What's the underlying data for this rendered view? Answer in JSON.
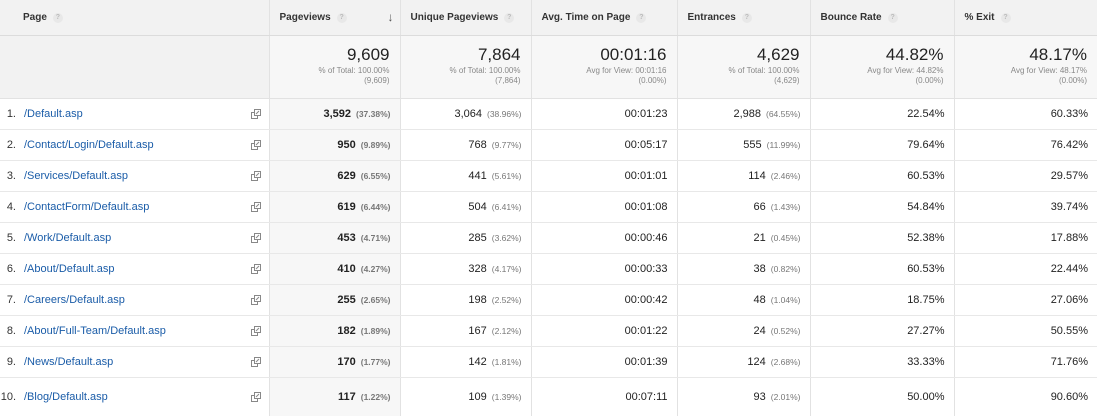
{
  "columns": [
    {
      "label": "Page"
    },
    {
      "label": "Pageviews"
    },
    {
      "label": "Unique Pageviews"
    },
    {
      "label": "Avg. Time on Page"
    },
    {
      "label": "Entrances"
    },
    {
      "label": "Bounce Rate"
    },
    {
      "label": "% Exit"
    }
  ],
  "totals": [
    {
      "value": "9,609",
      "line1": "% of Total: 100.00%",
      "line2": "(9,609)"
    },
    {
      "value": "7,864",
      "line1": "% of Total: 100.00%",
      "line2": "(7,864)"
    },
    {
      "value": "00:01:16",
      "line1": "Avg for View: 00:01:16",
      "line2": "(0.00%)"
    },
    {
      "value": "4,629",
      "line1": "% of Total: 100.00%",
      "line2": "(4,629)"
    },
    {
      "value": "44.82%",
      "line1": "Avg for View: 44.82%",
      "line2": "(0.00%)"
    },
    {
      "value": "48.17%",
      "line1": "Avg for View: 48.17%",
      "line2": "(0.00%)"
    }
  ],
  "rows": [
    {
      "rank": "1.",
      "page": "/Default.asp",
      "pageviews": "3,592",
      "pageviews_pct": "(37.38%)",
      "unique": "3,064",
      "unique_pct": "(38.96%)",
      "avg_time": "00:01:23",
      "entrances": "2,988",
      "entrances_pct": "(64.55%)",
      "bounce": "22.54%",
      "exit": "60.33%"
    },
    {
      "rank": "2.",
      "page": "/Contact/Login/Default.asp",
      "pageviews": "950",
      "pageviews_pct": "(9.89%)",
      "unique": "768",
      "unique_pct": "(9.77%)",
      "avg_time": "00:05:17",
      "entrances": "555",
      "entrances_pct": "(11.99%)",
      "bounce": "79.64%",
      "exit": "76.42%"
    },
    {
      "rank": "3.",
      "page": "/Services/Default.asp",
      "pageviews": "629",
      "pageviews_pct": "(6.55%)",
      "unique": "441",
      "unique_pct": "(5.61%)",
      "avg_time": "00:01:01",
      "entrances": "114",
      "entrances_pct": "(2.46%)",
      "bounce": "60.53%",
      "exit": "29.57%"
    },
    {
      "rank": "4.",
      "page": "/ContactForm/Default.asp",
      "pageviews": "619",
      "pageviews_pct": "(6.44%)",
      "unique": "504",
      "unique_pct": "(6.41%)",
      "avg_time": "00:01:08",
      "entrances": "66",
      "entrances_pct": "(1.43%)",
      "bounce": "54.84%",
      "exit": "39.74%"
    },
    {
      "rank": "5.",
      "page": "/Work/Default.asp",
      "pageviews": "453",
      "pageviews_pct": "(4.71%)",
      "unique": "285",
      "unique_pct": "(3.62%)",
      "avg_time": "00:00:46",
      "entrances": "21",
      "entrances_pct": "(0.45%)",
      "bounce": "52.38%",
      "exit": "17.88%"
    },
    {
      "rank": "6.",
      "page": "/About/Default.asp",
      "pageviews": "410",
      "pageviews_pct": "(4.27%)",
      "unique": "328",
      "unique_pct": "(4.17%)",
      "avg_time": "00:00:33",
      "entrances": "38",
      "entrances_pct": "(0.82%)",
      "bounce": "60.53%",
      "exit": "22.44%"
    },
    {
      "rank": "7.",
      "page": "/Careers/Default.asp",
      "pageviews": "255",
      "pageviews_pct": "(2.65%)",
      "unique": "198",
      "unique_pct": "(2.52%)",
      "avg_time": "00:00:42",
      "entrances": "48",
      "entrances_pct": "(1.04%)",
      "bounce": "18.75%",
      "exit": "27.06%"
    },
    {
      "rank": "8.",
      "page": "/About/Full-Team/Default.asp",
      "pageviews": "182",
      "pageviews_pct": "(1.89%)",
      "unique": "167",
      "unique_pct": "(2.12%)",
      "avg_time": "00:01:22",
      "entrances": "24",
      "entrances_pct": "(0.52%)",
      "bounce": "27.27%",
      "exit": "50.55%"
    },
    {
      "rank": "9.",
      "page": "/News/Default.asp",
      "pageviews": "170",
      "pageviews_pct": "(1.77%)",
      "unique": "142",
      "unique_pct": "(1.81%)",
      "avg_time": "00:01:39",
      "entrances": "124",
      "entrances_pct": "(2.68%)",
      "bounce": "33.33%",
      "exit": "71.76%"
    },
    {
      "rank": "10.",
      "page": "/Blog/Default.asp",
      "pageviews": "117",
      "pageviews_pct": "(1.22%)",
      "unique": "109",
      "unique_pct": "(1.39%)",
      "avg_time": "00:07:11",
      "entrances": "93",
      "entrances_pct": "(2.01%)",
      "bounce": "50.00%",
      "exit": "90.60%"
    }
  ],
  "help_glyph": "?",
  "sort_glyph": "↓",
  "icons": {
    "help": "help-icon",
    "sort": "sort-descending-icon",
    "external": "open-page-icon"
  },
  "colors": {
    "link": "#1a5ca8",
    "header_bg": "#f2f2f2",
    "sorted_bg": "#f7f7f7"
  }
}
